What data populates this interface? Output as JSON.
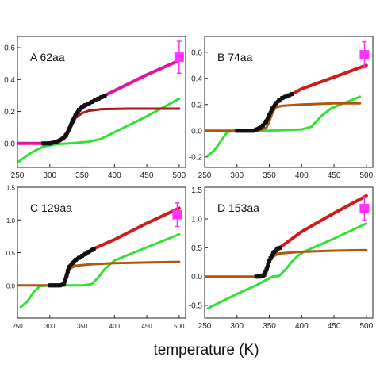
{
  "xlabel": "temperature (K)",
  "chart_data": [
    {
      "type": "line",
      "panel_label": "A",
      "title": "62aa",
      "xlim": [
        250,
        510
      ],
      "ylim": [
        -0.15,
        0.67
      ],
      "xticks": [
        250,
        300,
        350,
        400,
        450,
        500
      ],
      "xtick_labels": [
        "250",
        "300",
        "350",
        "400",
        "450",
        "500"
      ],
      "yticks": [
        0.0,
        0.2,
        0.4,
        0.6
      ],
      "ytick_labels": [
        "0.0",
        "0.2",
        "0.4",
        "0.6"
      ],
      "colors": {
        "exp": "#111111",
        "fit": "#e0169a",
        "red": "#d11a1a",
        "darkred": "#b01515",
        "green": "#33e033",
        "point": "#ff33ff"
      },
      "series": [
        {
          "role": "exp",
          "x": [
            290,
            300,
            310,
            320,
            325,
            330,
            335,
            340,
            345,
            350,
            355,
            360,
            365,
            370,
            375,
            380,
            385
          ],
          "y": [
            0.0,
            0.0,
            0.01,
            0.03,
            0.05,
            0.09,
            0.14,
            0.18,
            0.21,
            0.23,
            0.24,
            0.25,
            0.26,
            0.27,
            0.28,
            0.29,
            0.3
          ]
        },
        {
          "role": "fit",
          "x": [
            250,
            290,
            310,
            320,
            330,
            335,
            340,
            345,
            350,
            360,
            380,
            400,
            450,
            500
          ],
          "y": [
            0.0,
            0.0,
            0.01,
            0.03,
            0.09,
            0.13,
            0.17,
            0.2,
            0.22,
            0.25,
            0.29,
            0.33,
            0.43,
            0.52
          ]
        },
        {
          "role": "darkred",
          "x": [
            250,
            300,
            315,
            325,
            330,
            335,
            340,
            350,
            360,
            380,
            420,
            460,
            500
          ],
          "y": [
            0.0,
            0.0,
            0.01,
            0.04,
            0.08,
            0.12,
            0.16,
            0.19,
            0.205,
            0.215,
            0.218,
            0.218,
            0.218
          ]
        },
        {
          "role": "green",
          "x": [
            250,
            270,
            290,
            310,
            330,
            360,
            380,
            400,
            450,
            500
          ],
          "y": [
            -0.12,
            -0.06,
            -0.02,
            -0.005,
            0.0,
            0.01,
            0.03,
            0.07,
            0.17,
            0.28
          ]
        }
      ],
      "point": {
        "x": 500,
        "y": 0.54,
        "err": 0.1
      }
    },
    {
      "type": "line",
      "panel_label": "B",
      "title": "74aa",
      "xlim": [
        250,
        510
      ],
      "ylim": [
        -0.28,
        0.72
      ],
      "xticks": [
        250,
        300,
        350,
        400,
        450,
        500
      ],
      "xtick_labels": [
        "250",
        "300",
        "350",
        "400",
        "450",
        "500"
      ],
      "yticks": [
        -0.2,
        0.0,
        0.2,
        0.4,
        0.6
      ],
      "ytick_labels": [
        "-0.2",
        "0.0",
        "0.2",
        "0.4",
        "0.6"
      ],
      "colors": {
        "exp": "#111111",
        "fit": "#d11a1a",
        "red": "#d11a1a",
        "darkred": "#b0560e",
        "green": "#33e033",
        "point": "#ff33ff"
      },
      "series": [
        {
          "role": "exp",
          "x": [
            300,
            305,
            310,
            315,
            320,
            325,
            330,
            335,
            340,
            345,
            350,
            355,
            360,
            365,
            370,
            375,
            380,
            385
          ],
          "y": [
            0.0,
            0.0,
            0.0,
            0.0,
            0.0,
            0.0,
            0.01,
            0.02,
            0.04,
            0.07,
            0.12,
            0.17,
            0.21,
            0.23,
            0.25,
            0.26,
            0.27,
            0.28
          ]
        },
        {
          "role": "fit",
          "x": [
            385,
            400,
            450,
            500
          ],
          "y": [
            0.28,
            0.32,
            0.41,
            0.5
          ]
        },
        {
          "role": "darkred",
          "x": [
            250,
            330,
            345,
            350,
            355,
            360,
            370,
            400,
            450,
            490
          ],
          "y": [
            0.0,
            0.0,
            0.02,
            0.07,
            0.14,
            0.18,
            0.19,
            0.2,
            0.21,
            0.21
          ]
        },
        {
          "role": "green",
          "x": [
            255,
            265,
            275,
            285,
            300,
            350,
            400,
            415,
            430,
            445,
            460,
            490
          ],
          "y": [
            -0.19,
            -0.15,
            -0.08,
            -0.01,
            0.0,
            0.0,
            0.01,
            0.03,
            0.11,
            0.17,
            0.2,
            0.26
          ]
        }
      ],
      "point": {
        "x": 497,
        "y": 0.58,
        "err": 0.1
      }
    },
    {
      "type": "line",
      "panel_label": "C",
      "title": "129aa",
      "xlim": [
        250,
        510
      ],
      "ylim": [
        -0.5,
        1.5
      ],
      "xticks": [
        250,
        300,
        350,
        400,
        450,
        500
      ],
      "xtick_labels": [
        "250",
        "300",
        "350",
        "400",
        "450",
        "500"
      ],
      "yticks": [
        0.0,
        0.5,
        1.0,
        1.5
      ],
      "ytick_labels": [
        "0.0",
        "0.5",
        "1.0",
        "1.5"
      ],
      "colors": {
        "exp": "#111111",
        "fit": "#d11a1a",
        "red": "#d11a1a",
        "darkred": "#b0560e",
        "green": "#33e033",
        "point": "#ff33ff"
      },
      "series": [
        {
          "role": "exp",
          "x": [
            300,
            305,
            310,
            315,
            320,
            322,
            324,
            326,
            328,
            330,
            335,
            340,
            345,
            350,
            355,
            360,
            365,
            368
          ],
          "y": [
            0.0,
            0.0,
            0.0,
            0.0,
            0.01,
            0.03,
            0.08,
            0.15,
            0.22,
            0.28,
            0.34,
            0.39,
            0.42,
            0.45,
            0.48,
            0.51,
            0.54,
            0.56
          ]
        },
        {
          "role": "fit",
          "x": [
            368,
            400,
            450,
            500
          ],
          "y": [
            0.56,
            0.7,
            0.95,
            1.18
          ]
        },
        {
          "role": "darkred",
          "x": [
            250,
            315,
            322,
            326,
            330,
            340,
            360,
            400,
            450,
            500
          ],
          "y": [
            0.0,
            0.0,
            0.04,
            0.15,
            0.25,
            0.3,
            0.32,
            0.34,
            0.35,
            0.36
          ]
        },
        {
          "role": "green",
          "x": [
            255,
            265,
            275,
            285,
            300,
            350,
            365,
            375,
            385,
            400,
            450,
            500
          ],
          "y": [
            -0.33,
            -0.25,
            -0.1,
            -0.01,
            0.0,
            0.0,
            0.02,
            0.12,
            0.25,
            0.38,
            0.58,
            0.78
          ]
        }
      ],
      "point": {
        "x": 497,
        "y": 1.08,
        "err": 0.18
      }
    },
    {
      "type": "line",
      "panel_label": "D",
      "title": "153aa",
      "xlim": [
        250,
        510
      ],
      "ylim": [
        -0.72,
        1.55
      ],
      "xticks": [
        250,
        300,
        350,
        400,
        450,
        500
      ],
      "xtick_labels": [
        "250",
        "300",
        "350",
        "400",
        "450",
        "500"
      ],
      "yticks": [
        -0.5,
        0.0,
        0.5,
        1.0,
        1.5
      ],
      "ytick_labels": [
        "-0.5",
        "0.0",
        "0.5",
        "1.0",
        "1.5"
      ],
      "colors": {
        "exp": "#111111",
        "fit": "#d11a1a",
        "red": "#d11a1a",
        "darkred": "#b0560e",
        "green": "#33e033",
        "point": "#ff33ff"
      },
      "series": [
        {
          "role": "exp",
          "x": [
            330,
            335,
            340,
            342,
            344,
            346,
            348,
            350,
            352,
            354,
            356,
            358,
            360,
            362,
            364,
            366
          ],
          "y": [
            0.0,
            0.0,
            0.01,
            0.03,
            0.07,
            0.13,
            0.2,
            0.27,
            0.32,
            0.36,
            0.4,
            0.43,
            0.45,
            0.47,
            0.49,
            0.5
          ]
        },
        {
          "role": "fit",
          "x": [
            366,
            400,
            450,
            500
          ],
          "y": [
            0.5,
            0.78,
            1.1,
            1.4
          ]
        },
        {
          "role": "darkred",
          "x": [
            250,
            335,
            342,
            346,
            350,
            356,
            365,
            400,
            450,
            500
          ],
          "y": [
            0.0,
            0.0,
            0.06,
            0.18,
            0.28,
            0.35,
            0.4,
            0.43,
            0.45,
            0.46
          ]
        },
        {
          "role": "green",
          "x": [
            255,
            300,
            330,
            345,
            355,
            365,
            375,
            385,
            395,
            405,
            450,
            500
          ],
          "y": [
            -0.55,
            -0.3,
            -0.15,
            -0.06,
            0.0,
            0.01,
            0.12,
            0.26,
            0.37,
            0.44,
            0.66,
            0.92
          ]
        }
      ],
      "point": {
        "x": 497,
        "y": 1.18,
        "err": 0.2
      }
    }
  ]
}
